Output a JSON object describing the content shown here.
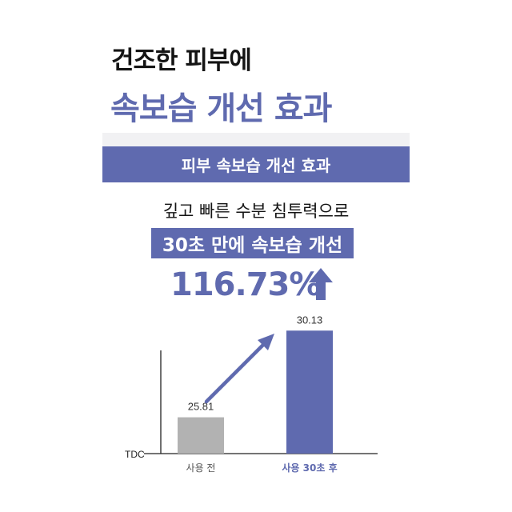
{
  "header": {
    "line1": "건조한 피부에",
    "line2": "속보습 개선 효과"
  },
  "banner": {
    "label": "피부 속보습 개선 효과"
  },
  "claim": {
    "subtitle": "깊고 빠른 수분 침투력으로",
    "highlight": "30초 만에 속보습 개선",
    "improvement": "116.73%"
  },
  "icons": {
    "improvement_arrow": "up-arrow-icon",
    "trend_arrow": "diagonal-up-arrow-icon"
  },
  "colors": {
    "accent": "#5f6aaf",
    "before_bar": "#b2b2b2",
    "after_bar": "#5f6aaf",
    "axis": "#222222"
  },
  "chart_data": {
    "type": "bar",
    "categories": [
      "사용 전",
      "사용 30초 후"
    ],
    "values": [
      25.81,
      30.13
    ],
    "value_labels": [
      "25.81",
      "30.13"
    ],
    "ylabel": "TDC",
    "ylim": [
      24.0,
      30.3
    ],
    "grid": false,
    "legend": "none"
  }
}
